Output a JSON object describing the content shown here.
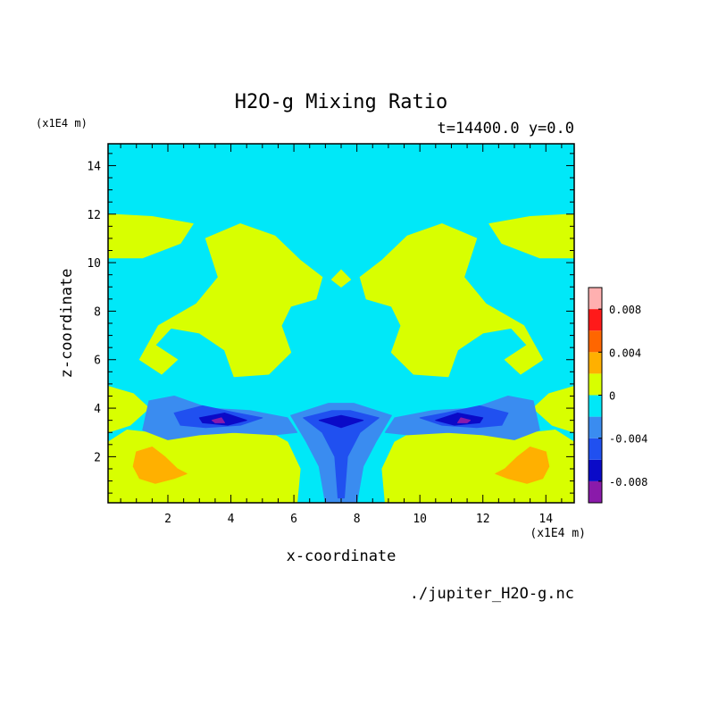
{
  "chart_data": {
    "type": "heatmap",
    "title": "H2O-g Mixing Ratio",
    "subtitle": "t=14400.0 y=0.0",
    "xlabel": "x-coordinate",
    "ylabel": "z-coordinate",
    "x_unit": "(x1E4 m)",
    "y_unit": "(x1E4 m)",
    "source_file": "./jupiter_H2O-g.nc",
    "xlim": [
      0.1,
      14.9
    ],
    "ylim": [
      0.1,
      14.9
    ],
    "x_ticks": [
      2,
      4,
      6,
      8,
      10,
      12,
      14
    ],
    "y_ticks": [
      2,
      4,
      6,
      8,
      10,
      12,
      14
    ],
    "colorbar": {
      "levels": [
        -0.01,
        -0.008,
        -0.006,
        -0.004,
        -0.002,
        0,
        0.002,
        0.004,
        0.006,
        0.008,
        0.01
      ],
      "tick_values": [
        -0.008,
        -0.004,
        0,
        0.004,
        0.008
      ],
      "tick_labels": [
        "-0.008",
        "-0.004",
        "0",
        "0.004",
        "0.008"
      ],
      "colors": [
        "#8a1aaa",
        "#0a0ac8",
        "#2050f0",
        "#3a8cf0",
        "#00e8f8",
        "#d8ff00",
        "#ffb000",
        "#ff6600",
        "#ff1a1a",
        "#ffb0b0"
      ]
    },
    "background_value": -0.001,
    "regions": [
      {
        "name": "upper-band-left",
        "value": 0.001,
        "points": [
          [
            0.1,
            12
          ],
          [
            1.5,
            11.9
          ],
          [
            2.8,
            11.6
          ],
          [
            2.4,
            10.8
          ],
          [
            1.2,
            10.2
          ],
          [
            0.1,
            10.2
          ]
        ]
      },
      {
        "name": "upper-band-right",
        "value": 0.001,
        "points": [
          [
            14.9,
            12
          ],
          [
            13.5,
            11.9
          ],
          [
            12.2,
            11.6
          ],
          [
            12.6,
            10.8
          ],
          [
            13.8,
            10.2
          ],
          [
            14.9,
            10.2
          ]
        ]
      },
      {
        "name": "mid-left-blob",
        "value": 0.001,
        "points": [
          [
            3.2,
            11
          ],
          [
            4.3,
            11.6
          ],
          [
            5.4,
            11.1
          ],
          [
            6.2,
            10.1
          ],
          [
            6.9,
            9.4
          ],
          [
            6.7,
            8.5
          ],
          [
            5.9,
            8.2
          ],
          [
            5.6,
            7.4
          ],
          [
            5.9,
            6.3
          ],
          [
            5.2,
            5.4
          ],
          [
            4.1,
            5.3
          ],
          [
            3.8,
            6.4
          ],
          [
            3.0,
            7.1
          ],
          [
            2.1,
            7.3
          ],
          [
            1.6,
            6.6
          ],
          [
            2.3,
            6.0
          ],
          [
            1.8,
            5.4
          ],
          [
            1.1,
            6.0
          ],
          [
            1.7,
            7.4
          ],
          [
            2.9,
            8.3
          ],
          [
            3.6,
            9.4
          ]
        ]
      },
      {
        "name": "mid-right-blob",
        "value": 0.001,
        "points": [
          [
            11.8,
            11
          ],
          [
            10.7,
            11.6
          ],
          [
            9.6,
            11.1
          ],
          [
            8.8,
            10.1
          ],
          [
            8.1,
            9.4
          ],
          [
            8.3,
            8.5
          ],
          [
            9.1,
            8.2
          ],
          [
            9.4,
            7.4
          ],
          [
            9.1,
            6.3
          ],
          [
            9.8,
            5.4
          ],
          [
            10.9,
            5.3
          ],
          [
            11.2,
            6.4
          ],
          [
            12.0,
            7.1
          ],
          [
            12.9,
            7.3
          ],
          [
            13.4,
            6.6
          ],
          [
            12.7,
            6.0
          ],
          [
            13.2,
            5.4
          ],
          [
            13.9,
            6.0
          ],
          [
            13.3,
            7.4
          ],
          [
            12.1,
            8.3
          ],
          [
            11.4,
            9.4
          ]
        ]
      },
      {
        "name": "center-small-blob",
        "value": 0.001,
        "points": [
          [
            7.2,
            9.3
          ],
          [
            7.5,
            9.7
          ],
          [
            7.8,
            9.3
          ],
          [
            7.5,
            9.0
          ]
        ]
      },
      {
        "name": "low-left-shelf",
        "value": 0.001,
        "points": [
          [
            0.1,
            4.9
          ],
          [
            0.9,
            4.6
          ],
          [
            1.4,
            4.0
          ],
          [
            0.8,
            3.3
          ],
          [
            0.1,
            3.0
          ]
        ]
      },
      {
        "name": "low-right-shelf",
        "value": 0.001,
        "points": [
          [
            14.9,
            4.9
          ],
          [
            14.1,
            4.6
          ],
          [
            13.6,
            4.0
          ],
          [
            14.2,
            3.3
          ],
          [
            14.9,
            3.0
          ]
        ]
      },
      {
        "name": "bottom-left-yellow",
        "value": 0.001,
        "points": [
          [
            0.1,
            0.1
          ],
          [
            6.1,
            0.1
          ],
          [
            6.2,
            1.5
          ],
          [
            5.8,
            2.6
          ],
          [
            5.1,
            3.1
          ],
          [
            4.1,
            3.2
          ],
          [
            3.0,
            3.1
          ],
          [
            2.2,
            2.8
          ],
          [
            1.4,
            3.0
          ],
          [
            0.7,
            3.1
          ],
          [
            0.1,
            2.6
          ]
        ]
      },
      {
        "name": "bottom-right-yellow",
        "value": 0.001,
        "points": [
          [
            14.9,
            0.1
          ],
          [
            8.9,
            0.1
          ],
          [
            8.8,
            1.5
          ],
          [
            9.2,
            2.6
          ],
          [
            9.9,
            3.1
          ],
          [
            10.9,
            3.2
          ],
          [
            12.0,
            3.1
          ],
          [
            12.8,
            2.8
          ],
          [
            13.6,
            3.0
          ],
          [
            14.3,
            3.1
          ],
          [
            14.9,
            2.6
          ]
        ]
      },
      {
        "name": "center-bottom-yellow",
        "value": 0.001,
        "points": [
          [
            7.0,
            0.6
          ],
          [
            7.3,
            0.9
          ],
          [
            7.6,
            0.6
          ],
          [
            7.3,
            0.3
          ]
        ]
      },
      {
        "name": "band-left-light-blue",
        "value": -0.003,
        "points": [
          [
            1.4,
            4.3
          ],
          [
            2.2,
            4.5
          ],
          [
            3.3,
            4.0
          ],
          [
            4.6,
            3.9
          ],
          [
            5.8,
            3.6
          ],
          [
            6.1,
            3.0
          ],
          [
            5.4,
            2.9
          ],
          [
            4.1,
            3.0
          ],
          [
            3.0,
            2.9
          ],
          [
            2.0,
            2.7
          ],
          [
            1.2,
            3.1
          ]
        ]
      },
      {
        "name": "band-right-light-blue",
        "value": -0.003,
        "points": [
          [
            13.6,
            4.3
          ],
          [
            12.8,
            4.5
          ],
          [
            11.7,
            4.0
          ],
          [
            10.4,
            3.9
          ],
          [
            9.2,
            3.6
          ],
          [
            8.9,
            3.0
          ],
          [
            9.6,
            2.9
          ],
          [
            10.9,
            3.0
          ],
          [
            12.0,
            2.9
          ],
          [
            13.0,
            2.7
          ],
          [
            13.8,
            3.1
          ]
        ]
      },
      {
        "name": "center-column-light-blue",
        "value": -0.003,
        "points": [
          [
            5.9,
            3.7
          ],
          [
            7.1,
            4.2
          ],
          [
            7.9,
            4.2
          ],
          [
            9.1,
            3.7
          ],
          [
            8.6,
            2.6
          ],
          [
            8.2,
            1.6
          ],
          [
            8.0,
            0.1
          ],
          [
            7.0,
            0.1
          ],
          [
            6.8,
            1.6
          ],
          [
            6.4,
            2.6
          ]
        ]
      },
      {
        "name": "left-blue-core",
        "value": -0.005,
        "points": [
          [
            2.2,
            3.8
          ],
          [
            3.1,
            4.1
          ],
          [
            4.2,
            3.8
          ],
          [
            5.0,
            3.6
          ],
          [
            4.3,
            3.3
          ],
          [
            3.2,
            3.2
          ],
          [
            2.4,
            3.3
          ]
        ]
      },
      {
        "name": "right-blue-core",
        "value": -0.005,
        "points": [
          [
            12.8,
            3.8
          ],
          [
            11.9,
            4.1
          ],
          [
            10.8,
            3.8
          ],
          [
            10.0,
            3.6
          ],
          [
            10.7,
            3.3
          ],
          [
            11.8,
            3.2
          ],
          [
            12.6,
            3.3
          ]
        ]
      },
      {
        "name": "center-blue-core",
        "value": -0.005,
        "points": [
          [
            6.3,
            3.6
          ],
          [
            7.2,
            3.9
          ],
          [
            7.8,
            3.9
          ],
          [
            8.7,
            3.6
          ],
          [
            8.1,
            3.0
          ],
          [
            7.7,
            2.0
          ],
          [
            7.6,
            0.3
          ],
          [
            7.4,
            0.3
          ],
          [
            7.3,
            2.0
          ],
          [
            6.9,
            3.0
          ]
        ]
      },
      {
        "name": "left-dark-core",
        "value": -0.007,
        "points": [
          [
            3.0,
            3.6
          ],
          [
            3.8,
            3.8
          ],
          [
            4.5,
            3.5
          ],
          [
            3.9,
            3.3
          ],
          [
            3.1,
            3.4
          ]
        ]
      },
      {
        "name": "right-dark-core",
        "value": -0.007,
        "points": [
          [
            12.0,
            3.6
          ],
          [
            11.2,
            3.8
          ],
          [
            10.5,
            3.5
          ],
          [
            11.1,
            3.3
          ],
          [
            11.9,
            3.4
          ]
        ]
      },
      {
        "name": "center-dark-core",
        "value": -0.007,
        "points": [
          [
            6.8,
            3.5
          ],
          [
            7.5,
            3.7
          ],
          [
            8.2,
            3.5
          ],
          [
            7.5,
            3.2
          ]
        ]
      },
      {
        "name": "left-violet-spot",
        "value": -0.009,
        "points": [
          [
            3.4,
            3.5
          ],
          [
            3.7,
            3.6
          ],
          [
            3.8,
            3.4
          ],
          [
            3.5,
            3.4
          ]
        ]
      },
      {
        "name": "right-violet-spot",
        "value": -0.009,
        "points": [
          [
            11.6,
            3.5
          ],
          [
            11.3,
            3.6
          ],
          [
            11.2,
            3.4
          ],
          [
            11.5,
            3.4
          ]
        ]
      },
      {
        "name": "left-orange-swirl",
        "value": 0.003,
        "points": [
          [
            1.0,
            2.2
          ],
          [
            1.5,
            2.4
          ],
          [
            1.9,
            2.0
          ],
          [
            2.3,
            1.5
          ],
          [
            2.6,
            1.3
          ],
          [
            2.2,
            1.1
          ],
          [
            1.6,
            0.9
          ],
          [
            1.1,
            1.1
          ],
          [
            0.9,
            1.6
          ]
        ]
      },
      {
        "name": "right-orange-swirl",
        "value": 0.003,
        "points": [
          [
            14.0,
            2.2
          ],
          [
            13.5,
            2.4
          ],
          [
            13.1,
            2.0
          ],
          [
            12.7,
            1.5
          ],
          [
            12.4,
            1.3
          ],
          [
            12.8,
            1.1
          ],
          [
            13.4,
            0.9
          ],
          [
            13.9,
            1.1
          ],
          [
            14.1,
            1.6
          ]
        ]
      }
    ]
  }
}
